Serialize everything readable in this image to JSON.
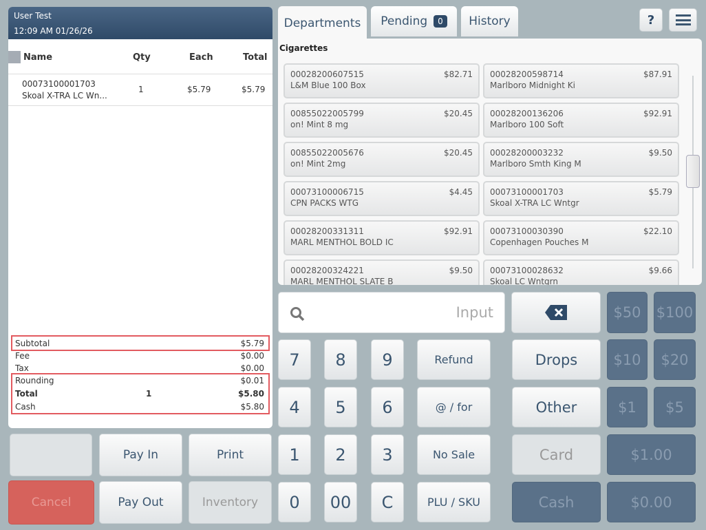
{
  "header": {
    "user": "User Test",
    "datetime": "12:09 AM 01/26/26"
  },
  "columns": {
    "name": "Name",
    "qty": "Qty",
    "each": "Each",
    "total": "Total"
  },
  "items": [
    {
      "code": "00073100001703",
      "name": "Skoal X-TRA LC Wn...",
      "qty": "1",
      "each": "$5.79",
      "total": "$5.79"
    }
  ],
  "totals": {
    "subtotal_label": "Subtotal",
    "subtotal": "$5.79",
    "fee_label": "Fee",
    "fee": "$0.00",
    "tax_label": "Tax",
    "tax": "$0.00",
    "rounding_label": "Rounding",
    "rounding": "$0.01",
    "total_label": "Total",
    "total_qty": "1",
    "total": "$5.80",
    "cash_label": "Cash",
    "cash": "$5.80"
  },
  "actions": {
    "pay_in": "Pay In",
    "print": "Print",
    "cancel": "Cancel",
    "pay_out": "Pay Out",
    "inventory": "Inventory"
  },
  "tabs": {
    "departments": "Departments",
    "pending": "Pending",
    "pending_count": "0",
    "history": "History",
    "help": "?"
  },
  "department": "Cigarettes",
  "products": [
    {
      "code": "00028200607515",
      "name": "L&M Blue 100 Box",
      "price": "$82.71"
    },
    {
      "code": "00028200598714",
      "name": "Marlboro Midnight Ki",
      "price": "$87.91"
    },
    {
      "code": "00855022005799",
      "name": "on! Mint 8 mg",
      "price": "$20.45"
    },
    {
      "code": "00028200136206",
      "name": "Marlboro 100 Soft",
      "price": "$92.91"
    },
    {
      "code": "00855022005676",
      "name": "on! Mint 2mg",
      "price": "$20.45"
    },
    {
      "code": "00028200003232",
      "name": "Marlboro Smth King M",
      "price": "$9.50"
    },
    {
      "code": "00073100006715",
      "name": "CPN PACKS WTG",
      "price": "$4.45"
    },
    {
      "code": "00073100001703",
      "name": "Skoal X-TRA LC Wntgr",
      "price": "$5.79"
    },
    {
      "code": "00028200331311",
      "name": "MARL MENTHOL BOLD IC",
      "price": "$92.91"
    },
    {
      "code": "00073100030390",
      "name": "Copenhagen Pouches M",
      "price": "$22.10"
    },
    {
      "code": "00028200324221",
      "name": "MARL MENTHOL SLATE B",
      "price": "$9.50"
    },
    {
      "code": "00073100028632",
      "name": "Skoal LC Wntgrn",
      "price": "$9.66"
    }
  ],
  "input": {
    "placeholder": "Input"
  },
  "keypad": {
    "k7": "7",
    "k8": "8",
    "k9": "9",
    "k4": "4",
    "k5": "5",
    "k6": "6",
    "k1": "1",
    "k2": "2",
    "k3": "3",
    "k0": "0",
    "k00": "00",
    "kc": "C",
    "refund": "Refund",
    "at_for": "@ / for",
    "no_sale": "No Sale",
    "plu_sku": "PLU / SKU",
    "drops": "Drops",
    "other": "Other",
    "card": "Card",
    "cash": "Cash",
    "b50": "$50",
    "b100": "$100",
    "b10": "$10",
    "b20": "$20",
    "b1": "$1",
    "b5": "$5",
    "exact1": "$1.00",
    "exact0": "$0.00"
  },
  "colors": {
    "header": "#2f4a68",
    "accent": "#3b5670",
    "highlight": "#e25a5f",
    "cancel": "#d6625c",
    "dark_button": "#5a7189"
  }
}
